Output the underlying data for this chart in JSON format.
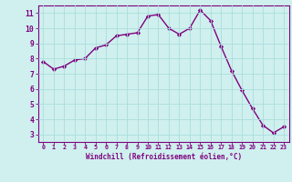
{
  "x": [
    0,
    1,
    2,
    3,
    4,
    5,
    6,
    7,
    8,
    9,
    10,
    11,
    12,
    13,
    14,
    15,
    16,
    17,
    18,
    19,
    20,
    21,
    22,
    23
  ],
  "y": [
    7.8,
    7.3,
    7.5,
    7.9,
    8.0,
    8.7,
    8.9,
    9.5,
    9.6,
    9.7,
    10.8,
    10.9,
    10.0,
    9.6,
    10.0,
    11.2,
    10.5,
    8.8,
    7.2,
    5.9,
    4.7,
    3.6,
    3.1,
    3.5
  ],
  "line_color": "#800080",
  "marker": "D",
  "marker_size": 2.2,
  "bg_color": "#cff0ee",
  "grid_color": "#aadddd",
  "xlabel": "Windchill (Refroidissement éolien,°C)",
  "xlabel_color": "#800080",
  "tick_color": "#800080",
  "xlim": [
    -0.5,
    23.5
  ],
  "ylim": [
    2.5,
    11.5
  ],
  "yticks": [
    3,
    4,
    5,
    6,
    7,
    8,
    9,
    10,
    11
  ],
  "xticks": [
    0,
    1,
    2,
    3,
    4,
    5,
    6,
    7,
    8,
    9,
    10,
    11,
    12,
    13,
    14,
    15,
    16,
    17,
    18,
    19,
    20,
    21,
    22,
    23
  ],
  "xtick_labels": [
    "0",
    "1",
    "2",
    "3",
    "4",
    "5",
    "6",
    "7",
    "8",
    "9",
    "10",
    "11",
    "12",
    "13",
    "14",
    "15",
    "16",
    "17",
    "18",
    "19",
    "20",
    "21",
    "22",
    "23"
  ],
  "ytick_labels": [
    "3",
    "4",
    "5",
    "6",
    "7",
    "8",
    "9",
    "10",
    "11"
  ],
  "line_width": 1.0,
  "spine_color": "#800080",
  "xlabel_fontsize": 5.5,
  "xtick_fontsize": 4.8,
  "ytick_fontsize": 5.8
}
